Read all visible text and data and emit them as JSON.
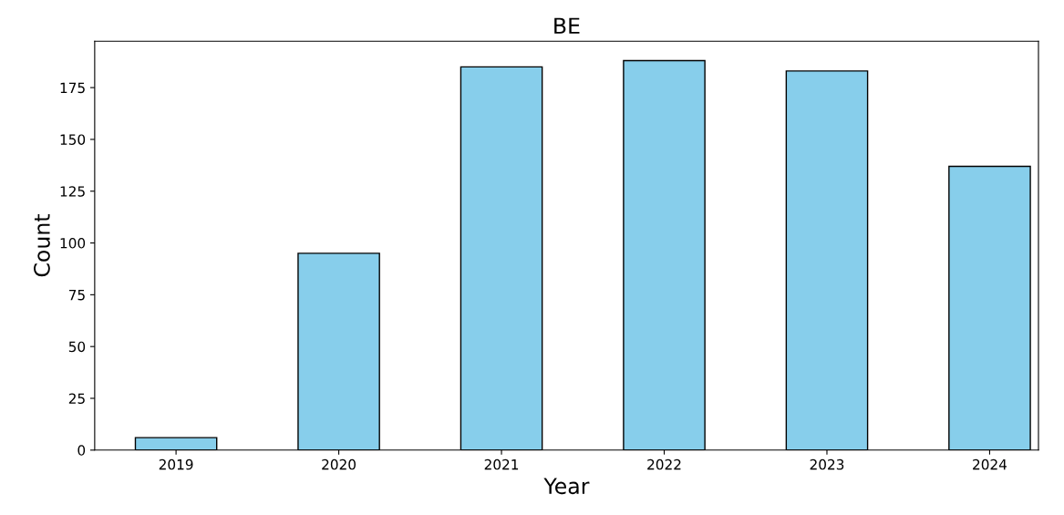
{
  "chart_data": {
    "type": "bar",
    "title": "BE",
    "xlabel": "Year",
    "ylabel": "Count",
    "categories": [
      "2019",
      "2020",
      "2021",
      "2022",
      "2023",
      "2024"
    ],
    "values": [
      6,
      95,
      185,
      188,
      183,
      137
    ],
    "color": "#87ceeb",
    "ylim": [
      0,
      197.4
    ],
    "yticks": [
      0,
      25,
      50,
      75,
      100,
      125,
      150,
      175
    ],
    "grid": false
  }
}
